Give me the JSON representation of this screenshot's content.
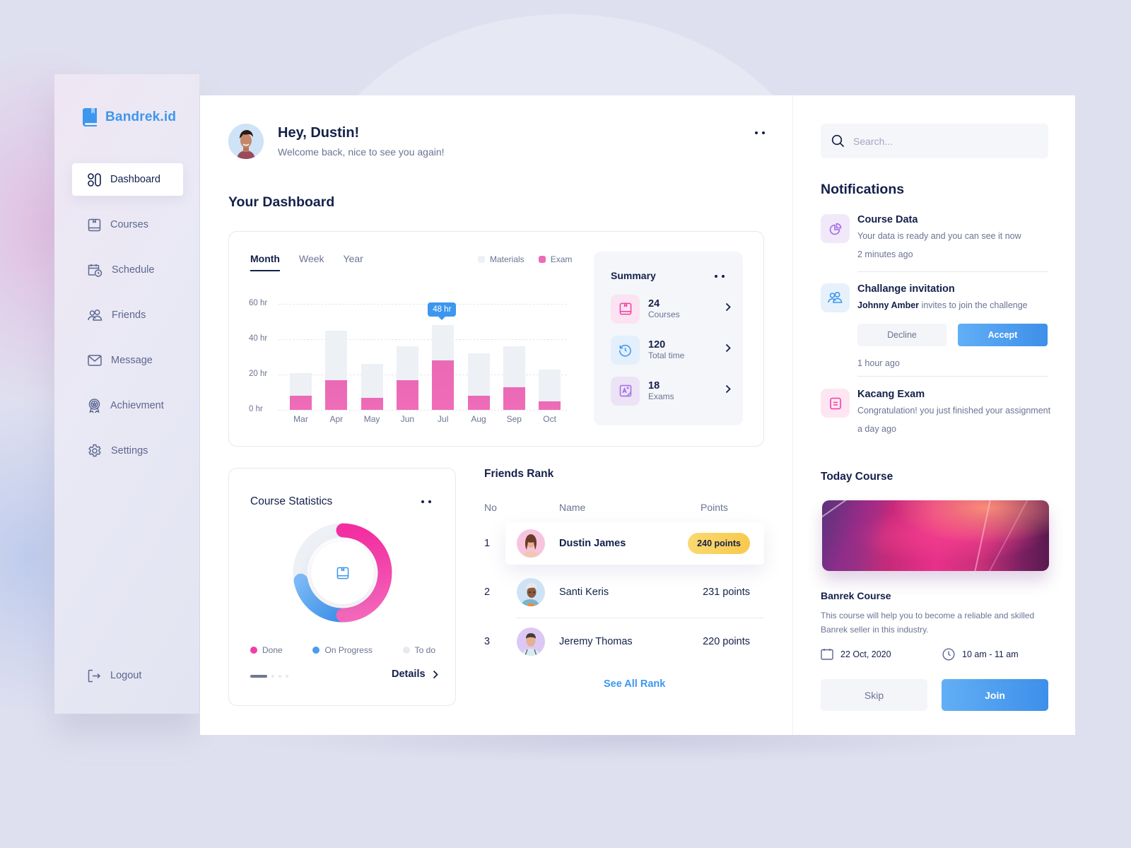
{
  "brand": {
    "name": "Bandrek.id",
    "color": "#3d97ee"
  },
  "sidebar": {
    "items": [
      {
        "label": "Dashboard",
        "icon": "dashboard-grid-icon",
        "active": true
      },
      {
        "label": "Courses",
        "icon": "book-icon"
      },
      {
        "label": "Schedule",
        "icon": "calendar-clock-icon"
      },
      {
        "label": "Friends",
        "icon": "users-icon"
      },
      {
        "label": "Message",
        "icon": "envelope-icon"
      },
      {
        "label": "Achievment",
        "icon": "award-icon"
      },
      {
        "label": "Settings",
        "icon": "gear-icon"
      }
    ],
    "logout": {
      "label": "Logout",
      "icon": "logout-icon"
    }
  },
  "header": {
    "greeting": "Hey, Dustin!",
    "subtitle": "Welcome back, nice to see you again!"
  },
  "dashboard": {
    "title": "Your Dashboard",
    "tabs": [
      "Month",
      "Week",
      "Year"
    ],
    "active_tab": "Month",
    "legend": [
      {
        "label": "Materials",
        "color": "#edf0f5"
      },
      {
        "label": "Exam",
        "color": "#ec6bb6"
      }
    ],
    "tooltip": "48 hr",
    "summary": {
      "title": "Summary",
      "items": [
        {
          "value": "24",
          "label": "Courses",
          "icon": "book-icon",
          "bg": "#fbe3f1",
          "color": "#f03fa5"
        },
        {
          "value": "120",
          "label": "Total time",
          "icon": "history-clock-icon",
          "bg": "#e3effc",
          "color": "#3d97ee"
        },
        {
          "value": "18",
          "label": "Exams",
          "icon": "exam-image-icon",
          "bg": "#ece3f6",
          "color": "#a36ae6"
        }
      ]
    }
  },
  "chart_data": {
    "type": "bar",
    "stacked": true,
    "title": "",
    "xlabel": "",
    "ylabel": "",
    "categories": [
      "Mar",
      "Apr",
      "May",
      "Jun",
      "Jul",
      "Aug",
      "Sep",
      "Oct"
    ],
    "series": [
      {
        "name": "Exam",
        "values": [
          8,
          17,
          7,
          17,
          28,
          8,
          13,
          5
        ],
        "color": "#ec6bb6"
      },
      {
        "name": "Materials",
        "values": [
          13,
          28,
          19,
          19,
          20,
          24,
          23,
          18
        ],
        "color": "#edf0f5"
      }
    ],
    "totals": [
      21,
      45,
      26,
      36,
      48,
      32,
      36,
      23
    ],
    "yticks": [
      "0 hr",
      "20 hr",
      "40 hr",
      "60 hr"
    ],
    "ylim": [
      0,
      60
    ],
    "grid": true,
    "legend_position": "top-right",
    "annotations": [
      {
        "category": "Jul",
        "text": "48 hr"
      }
    ]
  },
  "course_statistics": {
    "title": "Course Statistics",
    "segments": [
      {
        "label": "Done",
        "percent": 50,
        "color": "#f03fa5"
      },
      {
        "label": "On Progress",
        "percent": 22,
        "color": "#4a9cec"
      },
      {
        "label": "To do",
        "percent": 28,
        "color": "#edf0f5"
      }
    ],
    "details_label": "Details"
  },
  "friends_rank": {
    "title": "Friends Rank",
    "columns": [
      "No",
      "Name",
      "Points"
    ],
    "rows": [
      {
        "no": "1",
        "name": "Dustin James",
        "points": "240 points",
        "avatar_bg": "#f7c4de",
        "highlight": true
      },
      {
        "no": "2",
        "name": "Santi Keris",
        "points": "231 points",
        "avatar_bg": "#cfe3f7"
      },
      {
        "no": "3",
        "name": "Jeremy Thomas",
        "points": "220 points",
        "avatar_bg": "#dcc8f4"
      }
    ],
    "see_all": "See All Rank"
  },
  "search": {
    "placeholder": "Search..."
  },
  "notifications": {
    "title": "Notifications",
    "items": [
      {
        "title": "Course Data",
        "body": "Your data is ready and you can see it now",
        "time": "2 minutes ago",
        "icon": "pie-chart-icon"
      },
      {
        "title": "Challange invitation",
        "actor": "Johnny Amber",
        "body": " invites to join the challenge",
        "time": "1 hour ago",
        "icon": "users-icon",
        "decline": "Decline",
        "accept": "Accept"
      },
      {
        "title": "Kacang Exam",
        "body": "Congratulation! you just finished your assignment",
        "time": "a day ago",
        "icon": "document-icon"
      }
    ]
  },
  "today_course": {
    "title": "Today Course",
    "name": "Banrek Course",
    "description": "This course will help you to become a reliable and skilled Banrek seller in this industry.",
    "date": "22 Oct, 2020",
    "time": "10 am - 11 am",
    "skip": "Skip",
    "join": "Join"
  }
}
